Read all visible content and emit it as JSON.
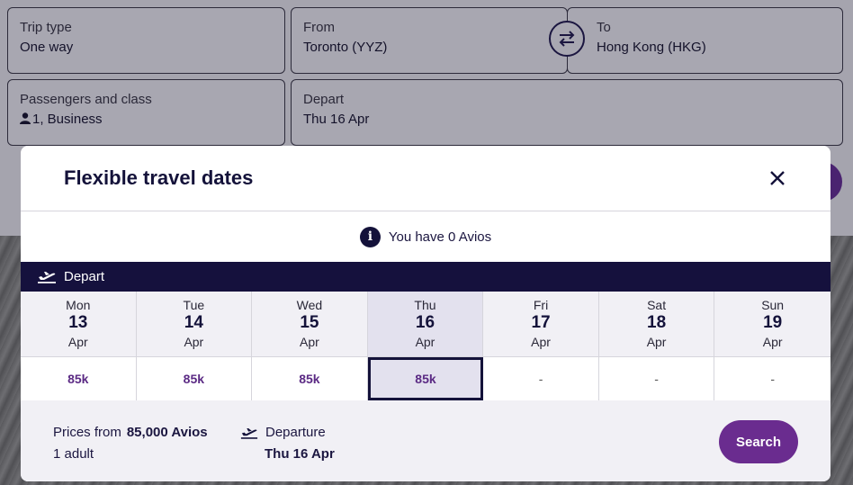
{
  "form": {
    "trip_type": {
      "label": "Trip type",
      "value": "One way"
    },
    "from": {
      "label": "From",
      "value": "Toronto (YYZ)"
    },
    "to": {
      "label": "To",
      "value": "Hong Kong (HKG)"
    },
    "passengers": {
      "label": "Passengers and class",
      "value": "1, Business"
    },
    "depart": {
      "label": "Depart",
      "value": "Thu 16 Apr"
    }
  },
  "modal": {
    "title": "Flexible travel dates",
    "avios_notice": "You have 0 Avios",
    "info_icon_glyph": "i",
    "depart_label": "Depart",
    "days": [
      {
        "dow": "Mon",
        "num": "13",
        "mon": "Apr",
        "price": "85k"
      },
      {
        "dow": "Tue",
        "num": "14",
        "mon": "Apr",
        "price": "85k"
      },
      {
        "dow": "Wed",
        "num": "15",
        "mon": "Apr",
        "price": "85k"
      },
      {
        "dow": "Thu",
        "num": "16",
        "mon": "Apr",
        "price": "85k"
      },
      {
        "dow": "Fri",
        "num": "17",
        "mon": "Apr",
        "price": "-"
      },
      {
        "dow": "Sat",
        "num": "18",
        "mon": "Apr",
        "price": "-"
      },
      {
        "dow": "Sun",
        "num": "19",
        "mon": "Apr",
        "price": "-"
      }
    ],
    "footer": {
      "prices_from_label": "Prices from",
      "prices_from_value": "85,000 Avios",
      "adults": "1 adult",
      "departure_label": "Departure",
      "departure_value": "Thu 16 Apr",
      "search_label": "Search"
    }
  },
  "colors": {
    "accent": "#6a2c8f",
    "navy": "#15113d"
  }
}
